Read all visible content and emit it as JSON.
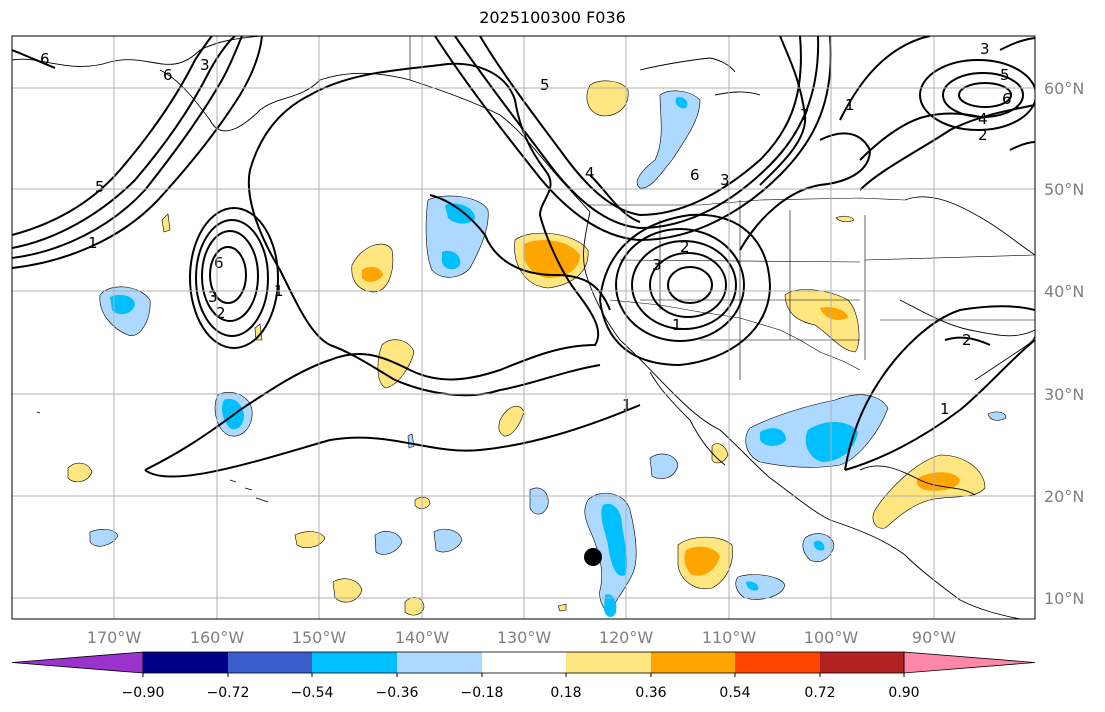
{
  "title": "2025100300 F036",
  "lon_labels": [
    "170°W",
    "160°W",
    "150°W",
    "140°W",
    "130°W",
    "120°W",
    "110°W",
    "100°W",
    "90°W"
  ],
  "lat_labels": [
    "60°N",
    "50°N",
    "40°N",
    "30°N",
    "20°N",
    "10°N"
  ],
  "colorbar": {
    "colors": [
      "#9933cc",
      "#00008b",
      "#3a5fcd",
      "#00bfff",
      "#add8ff",
      "#ffffff",
      "#ffe680",
      "#ffa500",
      "#ff4500",
      "#b22222",
      "#ff88aa"
    ],
    "labels": [
      "−0.90",
      "−0.72",
      "−0.54",
      "−0.36",
      "−0.18",
      "0.18",
      "0.36",
      "0.54",
      "0.72",
      "0.90"
    ]
  },
  "contour_labels": [
    "6",
    "5",
    "1",
    "3",
    "6",
    "3",
    "1",
    "2",
    "6",
    "5",
    "4",
    "3",
    "2",
    "1",
    "2",
    "3",
    "6",
    "7",
    "1",
    "4",
    "3",
    "5",
    "6",
    "1",
    "2",
    "1"
  ]
}
